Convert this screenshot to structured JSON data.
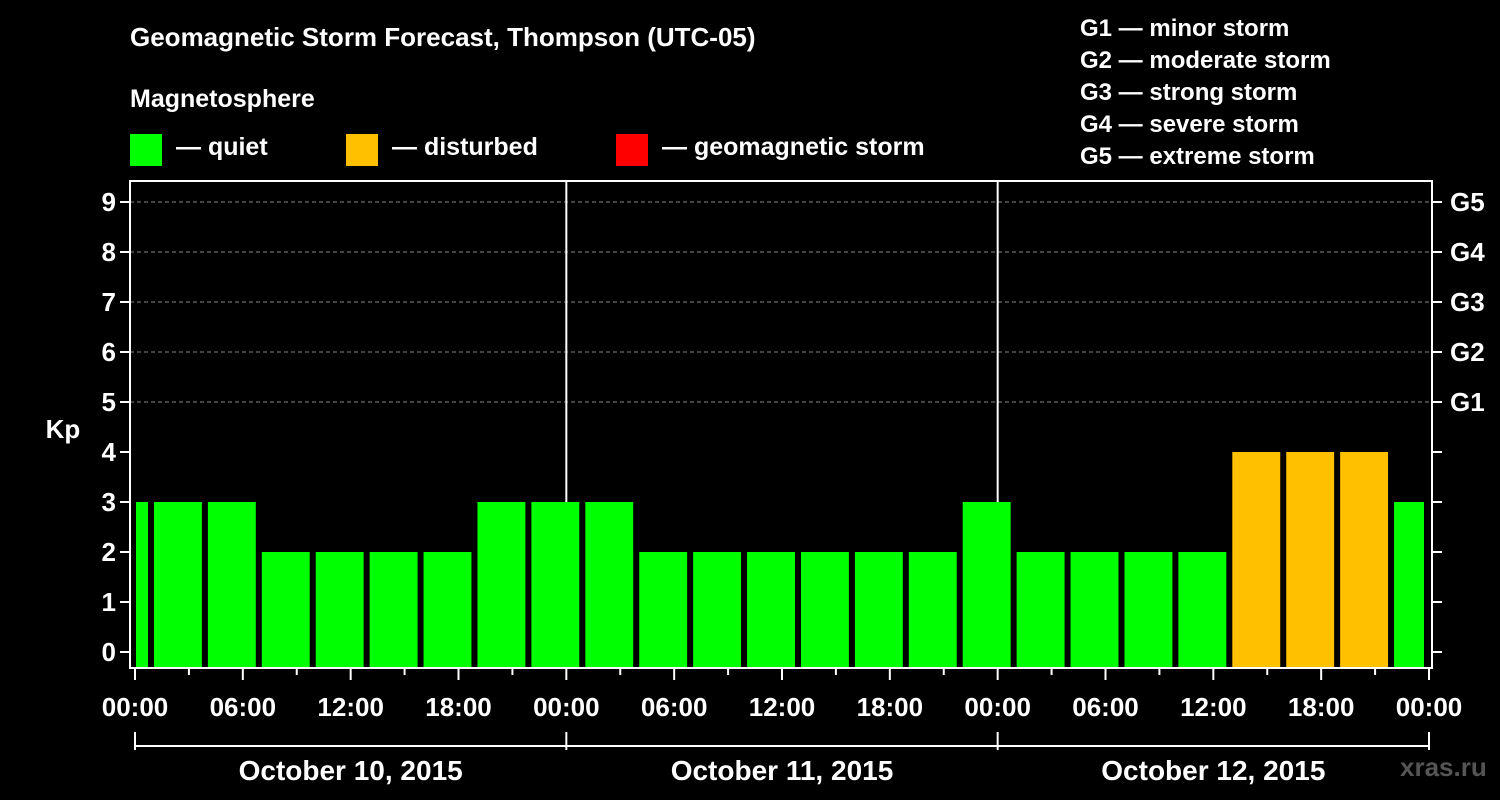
{
  "header": {
    "title": "Geomagnetic Storm Forecast, Thompson (UTC-05)",
    "subtitle": "Magnetosphere"
  },
  "legend": [
    {
      "label": "— quiet",
      "color": "#00ff00"
    },
    {
      "label": "— disturbed",
      "color": "#ffc000"
    },
    {
      "label": "— geomagnetic storm",
      "color": "#ff0000"
    }
  ],
  "storm_scale": [
    "G1 — minor storm",
    "G2 — moderate storm",
    "G3 — strong storm",
    "G4 — severe storm",
    "G5 — extreme storm"
  ],
  "watermark": "xras.ru",
  "chart_data": {
    "type": "bar",
    "ylabel": "Kp",
    "ylim": [
      0,
      9
    ],
    "y_ticks": [
      "0",
      "1",
      "2",
      "3",
      "4",
      "5",
      "6",
      "7",
      "8",
      "9"
    ],
    "right_ticks": [
      {
        "value": 5,
        "label": "G1"
      },
      {
        "value": 6,
        "label": "G2"
      },
      {
        "value": 7,
        "label": "G3"
      },
      {
        "value": 8,
        "label": "G4"
      },
      {
        "value": 9,
        "label": "G5"
      }
    ],
    "x_ticks": [
      "00:00",
      "06:00",
      "12:00",
      "18:00",
      "00:00",
      "06:00",
      "12:00",
      "18:00",
      "00:00",
      "06:00",
      "12:00",
      "18:00",
      "00:00"
    ],
    "days": [
      "October 10, 2015",
      "October 11, 2015",
      "October 12, 2015"
    ],
    "bars": [
      {
        "start": "Oct 10 00:00",
        "end": "Oct 10 01:00",
        "kp": 3,
        "level": "quiet"
      },
      {
        "start": "Oct 10 01:00",
        "end": "Oct 10 04:00",
        "kp": 3,
        "level": "quiet"
      },
      {
        "start": "Oct 10 04:00",
        "end": "Oct 10 07:00",
        "kp": 3,
        "level": "quiet"
      },
      {
        "start": "Oct 10 07:00",
        "end": "Oct 10 10:00",
        "kp": 2,
        "level": "quiet"
      },
      {
        "start": "Oct 10 10:00",
        "end": "Oct 10 13:00",
        "kp": 2,
        "level": "quiet"
      },
      {
        "start": "Oct 10 13:00",
        "end": "Oct 10 16:00",
        "kp": 2,
        "level": "quiet"
      },
      {
        "start": "Oct 10 16:00",
        "end": "Oct 10 19:00",
        "kp": 2,
        "level": "quiet"
      },
      {
        "start": "Oct 10 19:00",
        "end": "Oct 10 22:00",
        "kp": 3,
        "level": "quiet"
      },
      {
        "start": "Oct 10 22:00",
        "end": "Oct 11 01:00",
        "kp": 3,
        "level": "quiet"
      },
      {
        "start": "Oct 11 01:00",
        "end": "Oct 11 04:00",
        "kp": 3,
        "level": "quiet"
      },
      {
        "start": "Oct 11 04:00",
        "end": "Oct 11 07:00",
        "kp": 2,
        "level": "quiet"
      },
      {
        "start": "Oct 11 07:00",
        "end": "Oct 11 10:00",
        "kp": 2,
        "level": "quiet"
      },
      {
        "start": "Oct 11 10:00",
        "end": "Oct 11 13:00",
        "kp": 2,
        "level": "quiet"
      },
      {
        "start": "Oct 11 13:00",
        "end": "Oct 11 16:00",
        "kp": 2,
        "level": "quiet"
      },
      {
        "start": "Oct 11 16:00",
        "end": "Oct 11 19:00",
        "kp": 2,
        "level": "quiet"
      },
      {
        "start": "Oct 11 19:00",
        "end": "Oct 11 22:00",
        "kp": 2,
        "level": "quiet"
      },
      {
        "start": "Oct 11 22:00",
        "end": "Oct 12 01:00",
        "kp": 3,
        "level": "quiet"
      },
      {
        "start": "Oct 12 01:00",
        "end": "Oct 12 04:00",
        "kp": 2,
        "level": "quiet"
      },
      {
        "start": "Oct 12 04:00",
        "end": "Oct 12 07:00",
        "kp": 2,
        "level": "quiet"
      },
      {
        "start": "Oct 12 07:00",
        "end": "Oct 12 10:00",
        "kp": 2,
        "level": "quiet"
      },
      {
        "start": "Oct 12 10:00",
        "end": "Oct 12 13:00",
        "kp": 2,
        "level": "quiet"
      },
      {
        "start": "Oct 12 13:00",
        "end": "Oct 12 16:00",
        "kp": 4,
        "level": "disturbed"
      },
      {
        "start": "Oct 12 16:00",
        "end": "Oct 12 19:00",
        "kp": 4,
        "level": "disturbed"
      },
      {
        "start": "Oct 12 19:00",
        "end": "Oct 12 22:00",
        "kp": 4,
        "level": "disturbed"
      },
      {
        "start": "Oct 12 22:00",
        "end": "Oct 13 00:00",
        "kp": 3,
        "level": "quiet"
      }
    ],
    "colors": {
      "quiet": "#00ff00",
      "disturbed": "#ffc000",
      "storm": "#ff0000"
    },
    "grid": true
  }
}
